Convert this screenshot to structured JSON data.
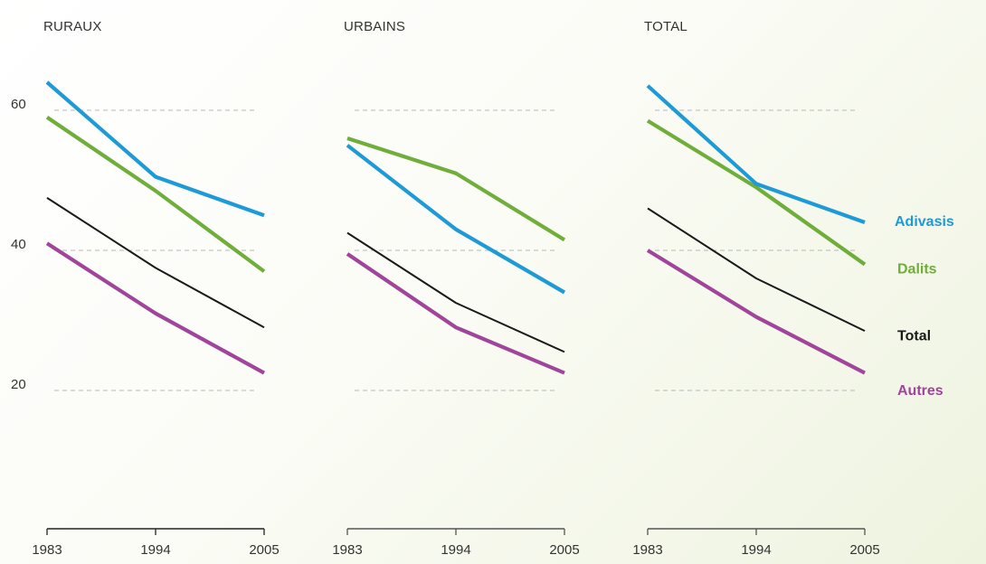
{
  "chart_data": {
    "type": "line",
    "x": [
      "1983",
      "1994",
      "2005"
    ],
    "ylim": [
      0,
      65
    ],
    "yticks": [
      20,
      40,
      60
    ],
    "grid": true,
    "legend": "right",
    "colors": {
      "Adivasis": "#1e9ad6",
      "Dalits": "#6fae3b",
      "Total": "#1a1a1a",
      "Autres": "#a0459b"
    },
    "panels": [
      {
        "title": "RURAUX",
        "series": [
          {
            "name": "Adivasis",
            "values": [
              64,
              50.5,
              45
            ]
          },
          {
            "name": "Dalits",
            "values": [
              59,
              48.5,
              37
            ]
          },
          {
            "name": "Total",
            "values": [
              47.5,
              37.5,
              29
            ]
          },
          {
            "name": "Autres",
            "values": [
              41,
              31,
              22.5
            ]
          }
        ]
      },
      {
        "title": "URBAINS",
        "series": [
          {
            "name": "Adivasis",
            "values": [
              55,
              43,
              34
            ]
          },
          {
            "name": "Dalits",
            "values": [
              56,
              51,
              41.5
            ]
          },
          {
            "name": "Total",
            "values": [
              42.5,
              32.5,
              25.5
            ]
          },
          {
            "name": "Autres",
            "values": [
              39.5,
              29,
              22.5
            ]
          }
        ]
      },
      {
        "title": "TOTAL",
        "series": [
          {
            "name": "Adivasis",
            "values": [
              63.5,
              49.5,
              44
            ]
          },
          {
            "name": "Dalits",
            "values": [
              58.5,
              49,
              38
            ]
          },
          {
            "name": "Total",
            "values": [
              46,
              36,
              28.5
            ]
          },
          {
            "name": "Autres",
            "values": [
              40,
              30.5,
              22.5
            ]
          }
        ]
      }
    ],
    "legend_entries": [
      "Adivasis",
      "Dalits",
      "Total",
      "Autres"
    ]
  }
}
